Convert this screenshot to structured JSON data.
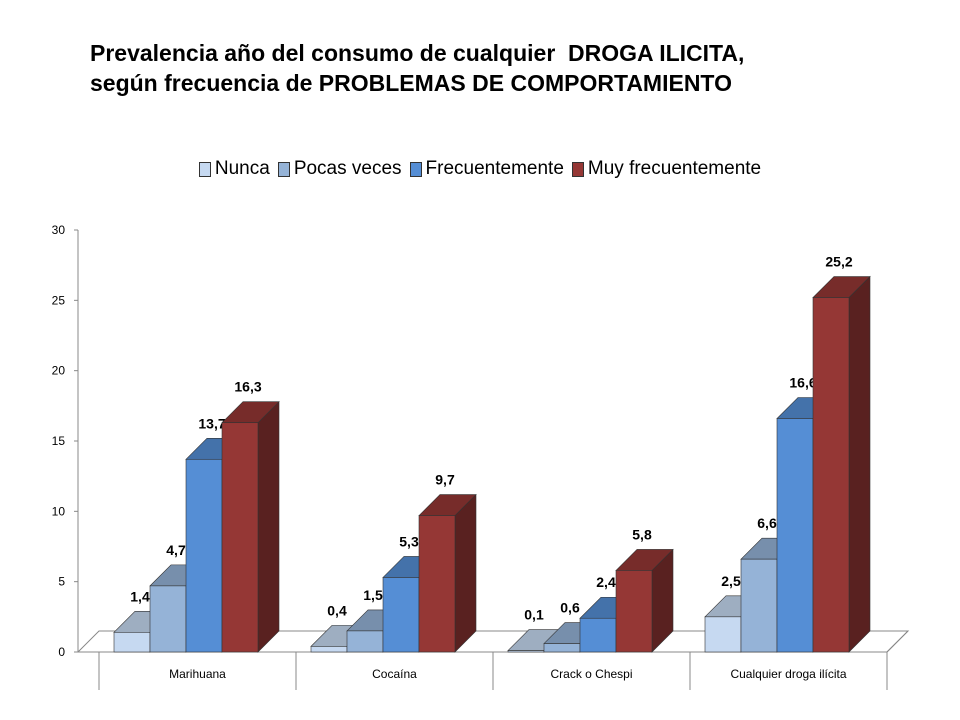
{
  "title_line1": "Prevalencia año del consumo de cualquier  DROGA ILICITA,",
  "title_line2": "según frecuencia de PROBLEMAS DE COMPORTAMIENTO",
  "chart_data": {
    "type": "bar",
    "title": "Prevalencia año del consumo de cualquier  DROGA ILICITA, según frecuencia de PROBLEMAS DE COMPORTAMIENTO",
    "categories": [
      "Marihuana",
      "Cocaína",
      "Crack o Chespi",
      "Cualquier droga ilícita"
    ],
    "series": [
      {
        "name": "Nunca",
        "values": [
          1.4,
          0.4,
          0.1,
          2.5
        ],
        "labels": [
          "1,4",
          "0,4",
          "0,1",
          "2,5"
        ],
        "color": "#c6d9f1"
      },
      {
        "name": "Pocas veces",
        "values": [
          4.7,
          1.5,
          0.6,
          6.6
        ],
        "labels": [
          "4,7",
          "1,5",
          "0,6",
          "6,6"
        ],
        "color": "#95b3d7"
      },
      {
        "name": "Frecuentemente",
        "values": [
          13.7,
          5.3,
          2.4,
          16.6
        ],
        "labels": [
          "13,7",
          "5,3",
          "2,4",
          "16,6"
        ],
        "color": "#558ed5"
      },
      {
        "name": "Muy frecuentemente",
        "values": [
          16.3,
          9.7,
          5.8,
          25.2
        ],
        "labels": [
          "16,3",
          "9,7",
          "5,8",
          "25,2"
        ],
        "color": "#953735"
      }
    ],
    "ylim": [
      0,
      30
    ],
    "yticks": [
      0,
      5,
      10,
      15,
      20,
      25,
      30
    ],
    "xlabel": "",
    "ylabel": "",
    "legend": "top",
    "grid": false,
    "three_d": true
  }
}
